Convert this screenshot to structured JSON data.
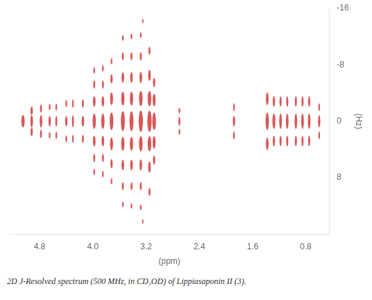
{
  "chart_data": {
    "type": "ellipse",
    "xlabel": "(ppm)",
    "ylabel": "(Hz)",
    "caption": "2D J-Resolved spectrum (500 MHz, in CD₃OD) of Lippiasaponin II (3).",
    "xlim": [
      5.25,
      0.45
    ],
    "ylim": [
      16,
      -16
    ],
    "xticks": [
      4.8,
      {
        "value": 4.0,
        "label": "4.0"
      },
      3.2,
      2.4,
      1.6,
      0.8
    ],
    "yticks": [
      -16,
      -8,
      0,
      8
    ],
    "grid": false,
    "color": "#cc2222",
    "x": [
      5.05,
      4.92,
      4.92,
      4.92,
      4.78,
      4.78,
      4.78,
      4.65,
      4.65,
      4.65,
      4.4,
      4.4,
      4.4,
      4.15,
      4.15,
      4.15,
      4.55,
      4.55,
      4.55,
      4.3,
      4.3,
      4.3,
      3.98,
      3.98,
      3.98,
      3.98,
      3.98,
      3.98,
      3.98,
      3.85,
      3.85,
      3.85,
      3.85,
      3.85,
      3.85,
      3.85,
      3.72,
      3.72,
      3.72,
      3.72,
      3.72,
      3.72,
      3.72,
      3.55,
      3.55,
      3.55,
      3.55,
      3.55,
      3.55,
      3.55,
      3.55,
      3.55,
      3.42,
      3.42,
      3.42,
      3.42,
      3.42,
      3.42,
      3.42,
      3.42,
      3.42,
      3.28,
      3.28,
      3.28,
      3.28,
      3.28,
      3.28,
      3.28,
      3.28,
      3.28,
      3.15,
      3.15,
      3.15,
      3.15,
      3.15,
      3.15,
      3.15,
      3.08,
      3.08,
      3.08,
      3.08,
      3.08,
      3.25,
      3.25,
      2.7,
      2.7,
      2.7,
      1.88,
      1.88,
      1.88,
      1.38,
      1.38,
      1.38,
      1.28,
      1.28,
      1.28,
      1.18,
      1.18,
      1.18,
      1.08,
      1.08,
      1.08,
      0.95,
      0.95,
      0.95,
      0.85,
      0.85,
      0.85,
      0.75,
      0.75,
      0.75,
      0.6,
      0.6,
      0.6
    ],
    "values": [
      0.0,
      -1.5,
      1.5,
      0.0,
      0.0,
      -1.8,
      1.8,
      0.0,
      -2.0,
      2.0,
      0.0,
      -2.5,
      2.5,
      0.0,
      -2.5,
      2.5,
      0.0,
      -2.0,
      2.0,
      0.0,
      -2.5,
      2.5,
      0.0,
      -2.8,
      2.8,
      -5.2,
      5.2,
      -7.2,
      7.2,
      0.0,
      -2.8,
      2.8,
      -5.2,
      5.2,
      -7.5,
      7.5,
      0.0,
      -3.2,
      3.2,
      -6.0,
      6.0,
      -8.5,
      8.5,
      0.0,
      -3.2,
      3.2,
      -6.2,
      6.2,
      -9.2,
      9.2,
      -11.8,
      11.8,
      0.0,
      -3.2,
      3.2,
      -6.2,
      6.2,
      -9.2,
      9.2,
      -12.0,
      12.0,
      0.0,
      -3.2,
      3.2,
      -6.2,
      6.2,
      -9.2,
      9.2,
      -12.2,
      12.2,
      0.0,
      -3.2,
      3.2,
      -6.5,
      6.5,
      -10.0,
      10.0,
      0.0,
      -3.0,
      3.0,
      -5.5,
      5.5,
      -14.2,
      14.2,
      0.0,
      -1.5,
      1.5,
      0.0,
      -2.0,
      2.0,
      0.0,
      -3.2,
      3.2,
      0.0,
      -2.8,
      2.8,
      0.0,
      -2.8,
      2.8,
      0.0,
      -2.8,
      2.8,
      0.0,
      -2.8,
      2.8,
      0.0,
      -2.8,
      2.8,
      0.0,
      -2.8,
      2.8,
      0.0,
      -2.0,
      2.0
    ],
    "widths": [
      0.05,
      0.035,
      0.035,
      0.04,
      0.04,
      0.03,
      0.03,
      0.035,
      0.025,
      0.025,
      0.035,
      0.025,
      0.025,
      0.04,
      0.03,
      0.03,
      0.03,
      0.025,
      0.025,
      0.03,
      0.025,
      0.025,
      0.05,
      0.04,
      0.04,
      0.03,
      0.03,
      0.025,
      0.025,
      0.05,
      0.04,
      0.04,
      0.03,
      0.03,
      0.025,
      0.025,
      0.055,
      0.045,
      0.045,
      0.035,
      0.035,
      0.025,
      0.025,
      0.06,
      0.05,
      0.05,
      0.04,
      0.04,
      0.03,
      0.03,
      0.025,
      0.025,
      0.06,
      0.05,
      0.05,
      0.04,
      0.04,
      0.03,
      0.03,
      0.025,
      0.025,
      0.065,
      0.055,
      0.055,
      0.04,
      0.04,
      0.03,
      0.03,
      0.025,
      0.025,
      0.065,
      0.055,
      0.055,
      0.04,
      0.04,
      0.03,
      0.03,
      0.055,
      0.045,
      0.045,
      0.035,
      0.035,
      0.02,
      0.02,
      0.03,
      0.025,
      0.025,
      0.035,
      0.025,
      0.025,
      0.05,
      0.04,
      0.04,
      0.045,
      0.035,
      0.035,
      0.04,
      0.032,
      0.032,
      0.04,
      0.032,
      0.032,
      0.04,
      0.032,
      0.032,
      0.04,
      0.032,
      0.032,
      0.04,
      0.032,
      0.032,
      0.035,
      0.025,
      0.025
    ],
    "heights": [
      1.8,
      1.2,
      1.2,
      1.8,
      1.8,
      1.2,
      1.2,
      1.5,
      0.9,
      0.9,
      1.5,
      1.0,
      1.0,
      1.5,
      1.2,
      1.2,
      1.5,
      1.0,
      1.0,
      1.8,
      1.2,
      1.2,
      2.2,
      1.5,
      1.5,
      1.2,
      1.2,
      0.9,
      0.9,
      2.2,
      1.5,
      1.5,
      1.2,
      1.2,
      0.9,
      0.9,
      2.5,
      1.8,
      1.8,
      1.3,
      1.3,
      0.9,
      0.9,
      2.8,
      2.0,
      2.0,
      1.5,
      1.5,
      1.1,
      1.1,
      0.8,
      0.8,
      2.8,
      2.0,
      2.0,
      1.5,
      1.5,
      1.1,
      1.1,
      0.8,
      0.8,
      3.0,
      2.2,
      2.2,
      1.6,
      1.6,
      1.2,
      1.2,
      0.8,
      0.8,
      3.0,
      2.2,
      2.2,
      1.6,
      1.6,
      1.1,
      1.1,
      2.5,
      1.8,
      1.8,
      1.3,
      1.3,
      0.7,
      0.7,
      1.3,
      0.8,
      0.8,
      1.5,
      1.1,
      1.1,
      2.5,
      1.8,
      1.8,
      2.2,
      1.5,
      1.5,
      2.2,
      1.5,
      1.5,
      2.2,
      1.5,
      1.5,
      2.2,
      1.5,
      1.5,
      2.2,
      1.5,
      1.5,
      2.2,
      1.5,
      1.5,
      1.8,
      1.1,
      1.1
    ]
  }
}
